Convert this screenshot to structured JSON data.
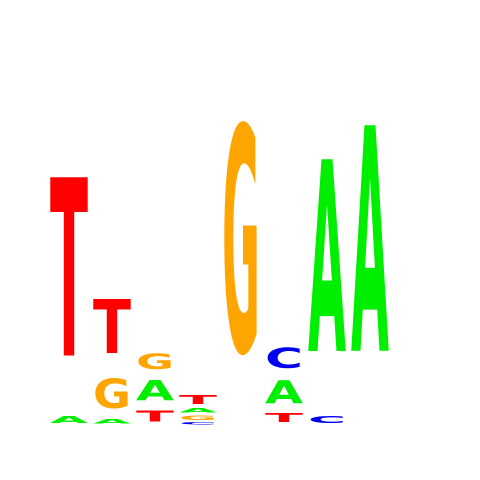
{
  "colors": {
    "A": "#00ee00",
    "C": "#0000ee",
    "G": "#ffa500",
    "T": "#ff0000"
  },
  "positions": [
    {
      "index": 1,
      "stack": [
        {
          "letter": "A",
          "height": 0.03
        },
        {
          "letter": "T",
          "height": 0.79
        }
      ]
    },
    {
      "index": 2,
      "stack": [
        {
          "letter": "A",
          "height": 0.02
        },
        {
          "letter": "G",
          "height": 0.13
        },
        {
          "letter": "T",
          "height": 0.24
        }
      ]
    },
    {
      "index": 3,
      "stack": [
        {
          "letter": "T",
          "height": 0.05
        },
        {
          "letter": "A",
          "height": 0.09
        },
        {
          "letter": "G",
          "height": 0.07
        }
      ]
    },
    {
      "index": 4,
      "stack": [
        {
          "letter": "C",
          "height": 0.01
        },
        {
          "letter": "G",
          "height": 0.02
        },
        {
          "letter": "A",
          "height": 0.02
        },
        {
          "letter": "T",
          "height": 0.04
        }
      ]
    },
    {
      "index": 5,
      "stack": [
        {
          "letter": "G",
          "height": 1.0
        }
      ]
    },
    {
      "index": 6,
      "stack": [
        {
          "letter": "T",
          "height": 0.04
        },
        {
          "letter": "A",
          "height": 0.1
        },
        {
          "letter": "C",
          "height": 0.09
        }
      ]
    },
    {
      "index": 7,
      "stack": [
        {
          "letter": "C",
          "height": 0.03
        },
        {
          "letter": "A",
          "height": 0.85
        }
      ]
    },
    {
      "index": 8,
      "stack": [
        {
          "letter": "A",
          "height": 1.0
        }
      ]
    }
  ]
}
